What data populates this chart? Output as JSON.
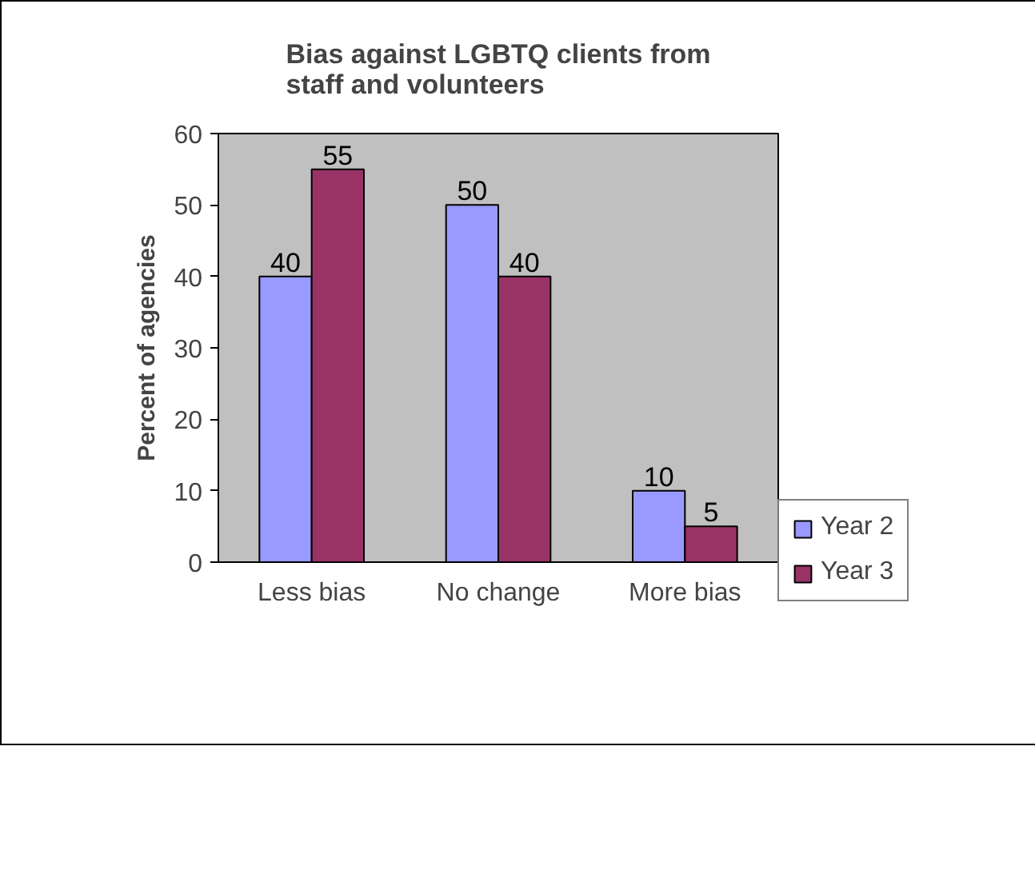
{
  "chart_data": {
    "type": "bar",
    "title": "Bias against LGBTQ clients from staff and volunteers",
    "ylabel": "Percent of agencies",
    "categories": [
      "Less bias",
      "No change",
      "More bias"
    ],
    "series": [
      {
        "name": "Year 2",
        "color": "#9999ff",
        "values": [
          40,
          50,
          10
        ]
      },
      {
        "name": "Year 3",
        "color": "#993366",
        "values": [
          55,
          40,
          5
        ]
      }
    ],
    "ylim": [
      0,
      60
    ],
    "yticks": [
      0,
      10,
      20,
      30,
      40,
      50,
      60
    ],
    "grid": false,
    "legend": "right",
    "data_labels": true
  }
}
